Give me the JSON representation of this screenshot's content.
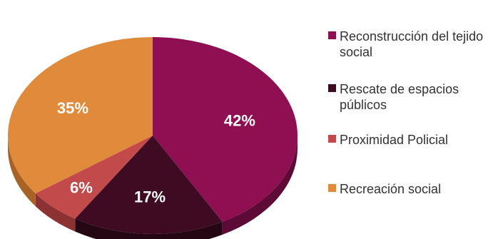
{
  "chart_data": {
    "type": "pie",
    "title": "",
    "slices": [
      {
        "label": "Reconstrucción del tejido social",
        "value": 42,
        "display": "42%",
        "color": "#8E1052",
        "side": "#5E0A36",
        "label_color": "#ffffff"
      },
      {
        "label": "Rescate de espacios públicos",
        "value": 17,
        "display": "17%",
        "color": "#3E0B23",
        "side": "#250613",
        "label_color": "#ffffff"
      },
      {
        "label": "Proximidad Policial",
        "value": 6,
        "display": "6%",
        "color": "#C24A4A",
        "side": "#8C3232",
        "label_color": "#ffffff"
      },
      {
        "label": "Recreación social",
        "value": 35,
        "display": "35%",
        "color": "#E08A3C",
        "side": "#A96225",
        "label_color": "#ffffff"
      }
    ],
    "legend": {
      "position": "right"
    }
  }
}
